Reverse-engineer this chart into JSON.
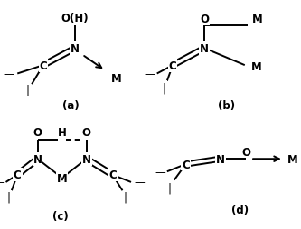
{
  "bg_color": "#ffffff",
  "line_color": "#000000",
  "font_size": 8.5,
  "lw": 1.4,
  "panels": {
    "a": {
      "label": "(a)"
    },
    "b": {
      "label": "(b)"
    },
    "c": {
      "label": "(c)"
    },
    "d": {
      "label": "(d)"
    }
  }
}
